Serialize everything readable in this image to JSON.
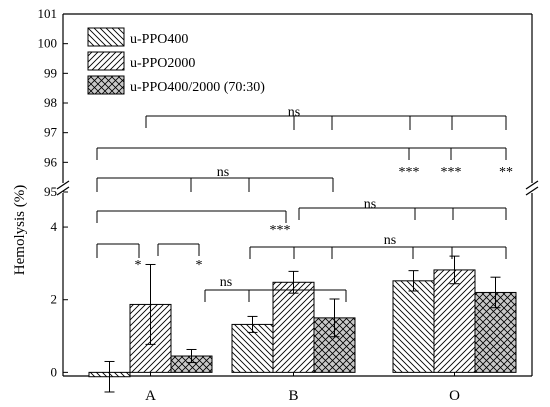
{
  "chart_data": {
    "type": "bar",
    "ylabel": "Hemolysis (%)",
    "broken_axis": true,
    "upper_segment": {
      "ylim": [
        95,
        101
      ],
      "ticks": [
        95,
        96,
        97,
        98,
        99,
        100,
        101
      ]
    },
    "lower_segment": {
      "ylim": [
        -0.1,
        4.8
      ],
      "ticks": [
        0,
        2,
        4
      ]
    },
    "categories": [
      "A",
      "B",
      "O"
    ],
    "legend_position": "top-left",
    "series": [
      {
        "name": "u-PPO400",
        "pattern": "hatch-back",
        "values": [
          -0.12,
          1.32,
          2.52
        ],
        "errors": [
          0.42,
          0.22,
          0.28
        ]
      },
      {
        "name": "u-PPO2000",
        "pattern": "hatch-forward",
        "values": [
          1.87,
          2.48,
          2.82
        ],
        "errors": [
          1.1,
          0.3,
          0.38
        ]
      },
      {
        "name": "u-PPO400/2000 (70:30)",
        "pattern": "crosshatch",
        "values": [
          0.45,
          1.5,
          2.2
        ],
        "errors": [
          0.18,
          0.52,
          0.42
        ]
      }
    ],
    "annotations": [
      {
        "id": "a-ast1",
        "text": "*"
      },
      {
        "id": "a-ast2",
        "text": "*"
      },
      {
        "id": "ns-ab",
        "text": "ns"
      },
      {
        "id": "ast3-ab",
        "text": "***"
      },
      {
        "id": "ns-bo",
        "text": "ns"
      },
      {
        "id": "ns-b",
        "text": "ns"
      },
      {
        "id": "ns-bo-low",
        "text": "ns"
      },
      {
        "id": "ns-top",
        "text": "ns"
      },
      {
        "id": "sig-o1",
        "text": "***"
      },
      {
        "id": "sig-o2",
        "text": "***"
      },
      {
        "id": "sig-o3",
        "text": "**"
      }
    ]
  }
}
